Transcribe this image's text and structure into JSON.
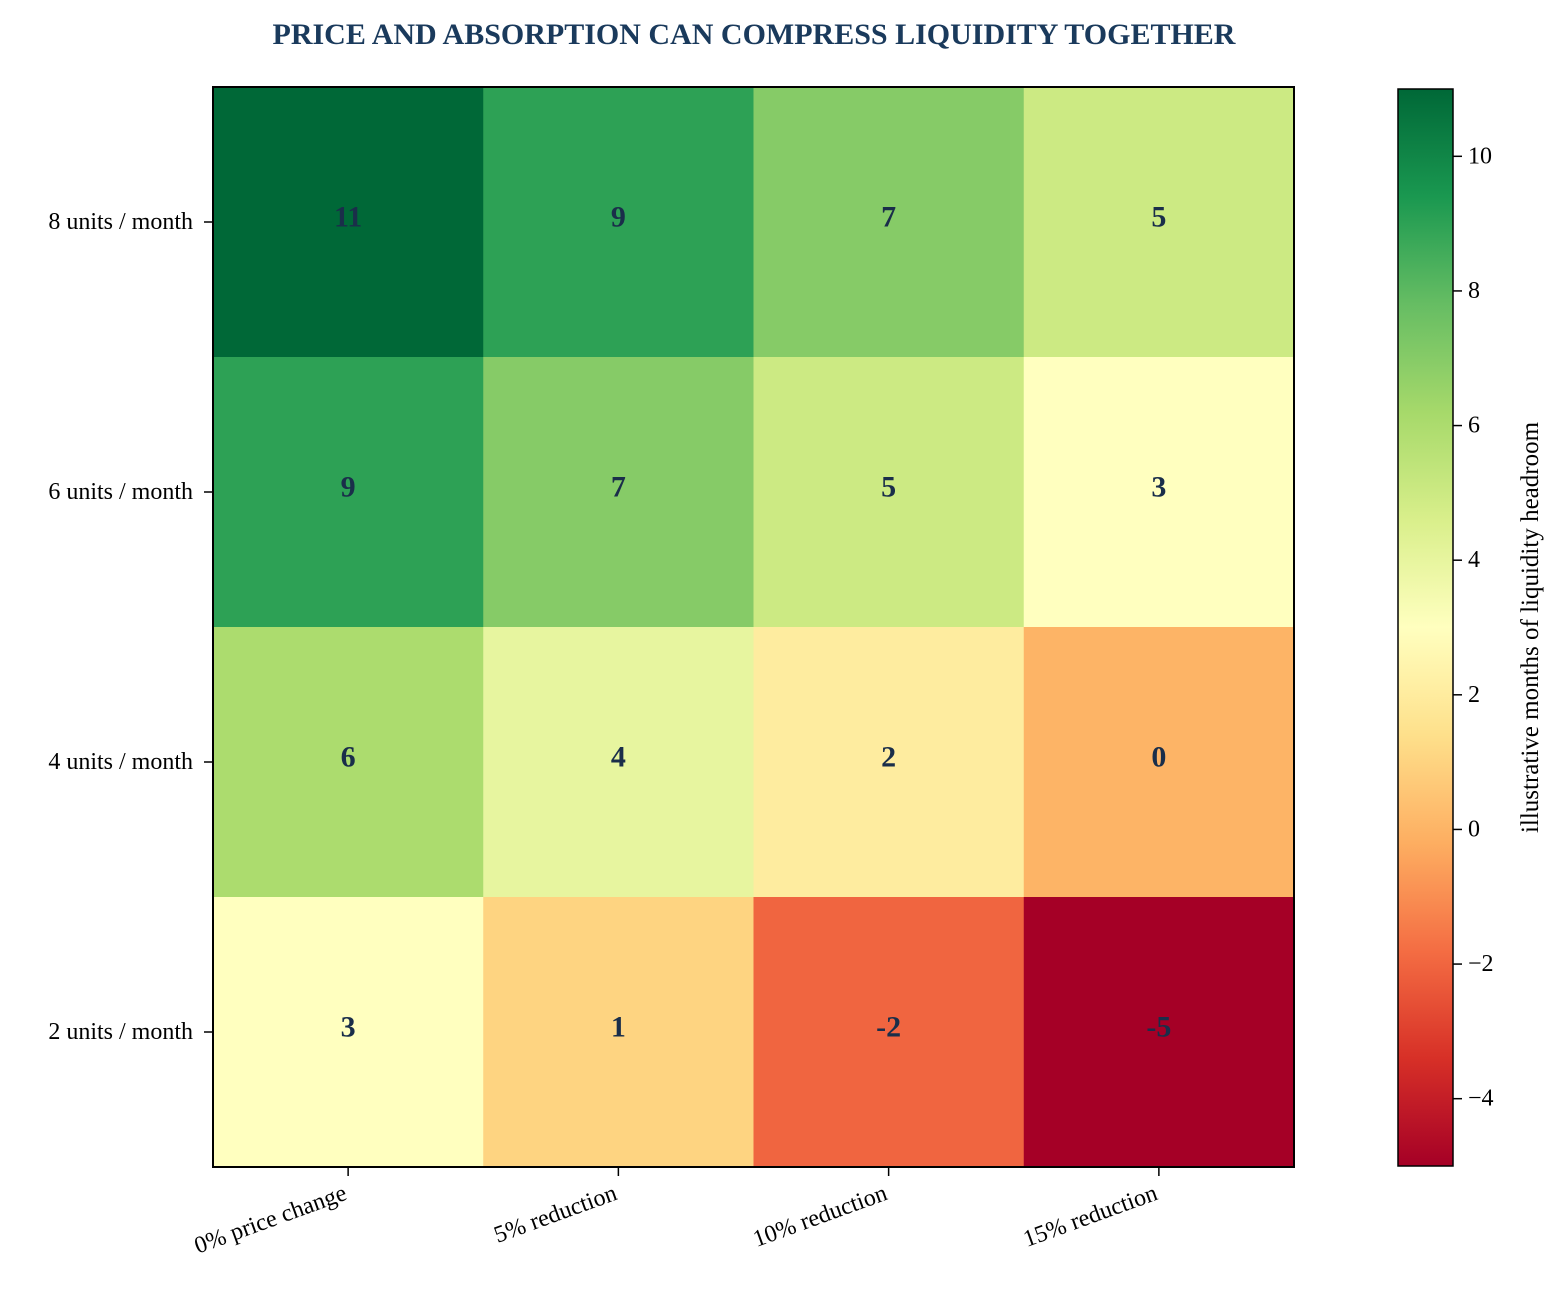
{
  "chart_data": {
    "type": "heatmap",
    "title": "PRICE AND ABSORPTION CAN COMPRESS LIQUIDITY TOGETHER",
    "x_categories": [
      "0% price change",
      "5% reduction",
      "10% reduction",
      "15% reduction"
    ],
    "y_categories": [
      "8 units / month",
      "6 units / month",
      "4 units / month",
      "2 units / month"
    ],
    "values": [
      [
        11,
        9,
        7,
        5
      ],
      [
        9,
        7,
        5,
        3
      ],
      [
        6,
        4,
        2,
        0
      ],
      [
        3,
        1,
        -2,
        -5
      ]
    ],
    "value_labels": [
      [
        "11",
        "9",
        "7",
        "5"
      ],
      [
        "9",
        "7",
        "5",
        "3"
      ],
      [
        "6",
        "4",
        "2",
        "0"
      ],
      [
        "3",
        "1",
        "-2",
        "-5"
      ]
    ],
    "colorbar": {
      "label": "illustrative months of liquidity headroom",
      "range": [
        -5,
        11
      ],
      "ticks": [
        -4,
        -2,
        0,
        2,
        4,
        6,
        8,
        10
      ],
      "tick_labels": [
        "−4",
        "−2",
        "0",
        "2",
        "4",
        "6",
        "8",
        "10"
      ],
      "colormap": "RdYlGn"
    },
    "colors": {
      "title": "#1a3a5c",
      "cell_text": "#1a2e4a"
    },
    "x_tick_rotation": "rotated about 20 degrees"
  }
}
